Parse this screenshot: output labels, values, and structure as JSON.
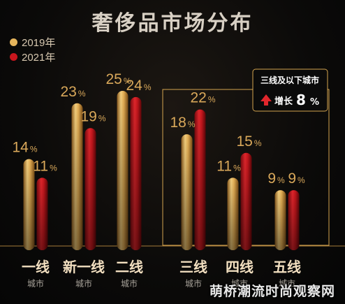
{
  "chart_data": {
    "type": "bar",
    "title": "奢侈品市场分布",
    "unit": "%",
    "categories": [
      {
        "name": "一线",
        "sub": "城市"
      },
      {
        "name": "新一线",
        "sub": "城市"
      },
      {
        "name": "二线",
        "sub": "城市"
      },
      {
        "name": "三线",
        "sub": "城市"
      },
      {
        "name": "四线",
        "sub": "城市"
      },
      {
        "name": "五线",
        "sub": "城市"
      }
    ],
    "series": [
      {
        "name": "2019年",
        "color": "#e6b55c",
        "values": [
          14,
          23,
          25,
          18,
          11,
          9
        ]
      },
      {
        "name": "2021年",
        "color": "#c8161d",
        "values": [
          11,
          19,
          24,
          22,
          15,
          9
        ]
      }
    ],
    "ylim": [
      0,
      25
    ],
    "legend": "top-left",
    "callout": {
      "title": "三线及以下城市",
      "label": "增长",
      "value": "8",
      "unit": "%"
    }
  },
  "watermark": "萌桥潮流时尚观察网"
}
